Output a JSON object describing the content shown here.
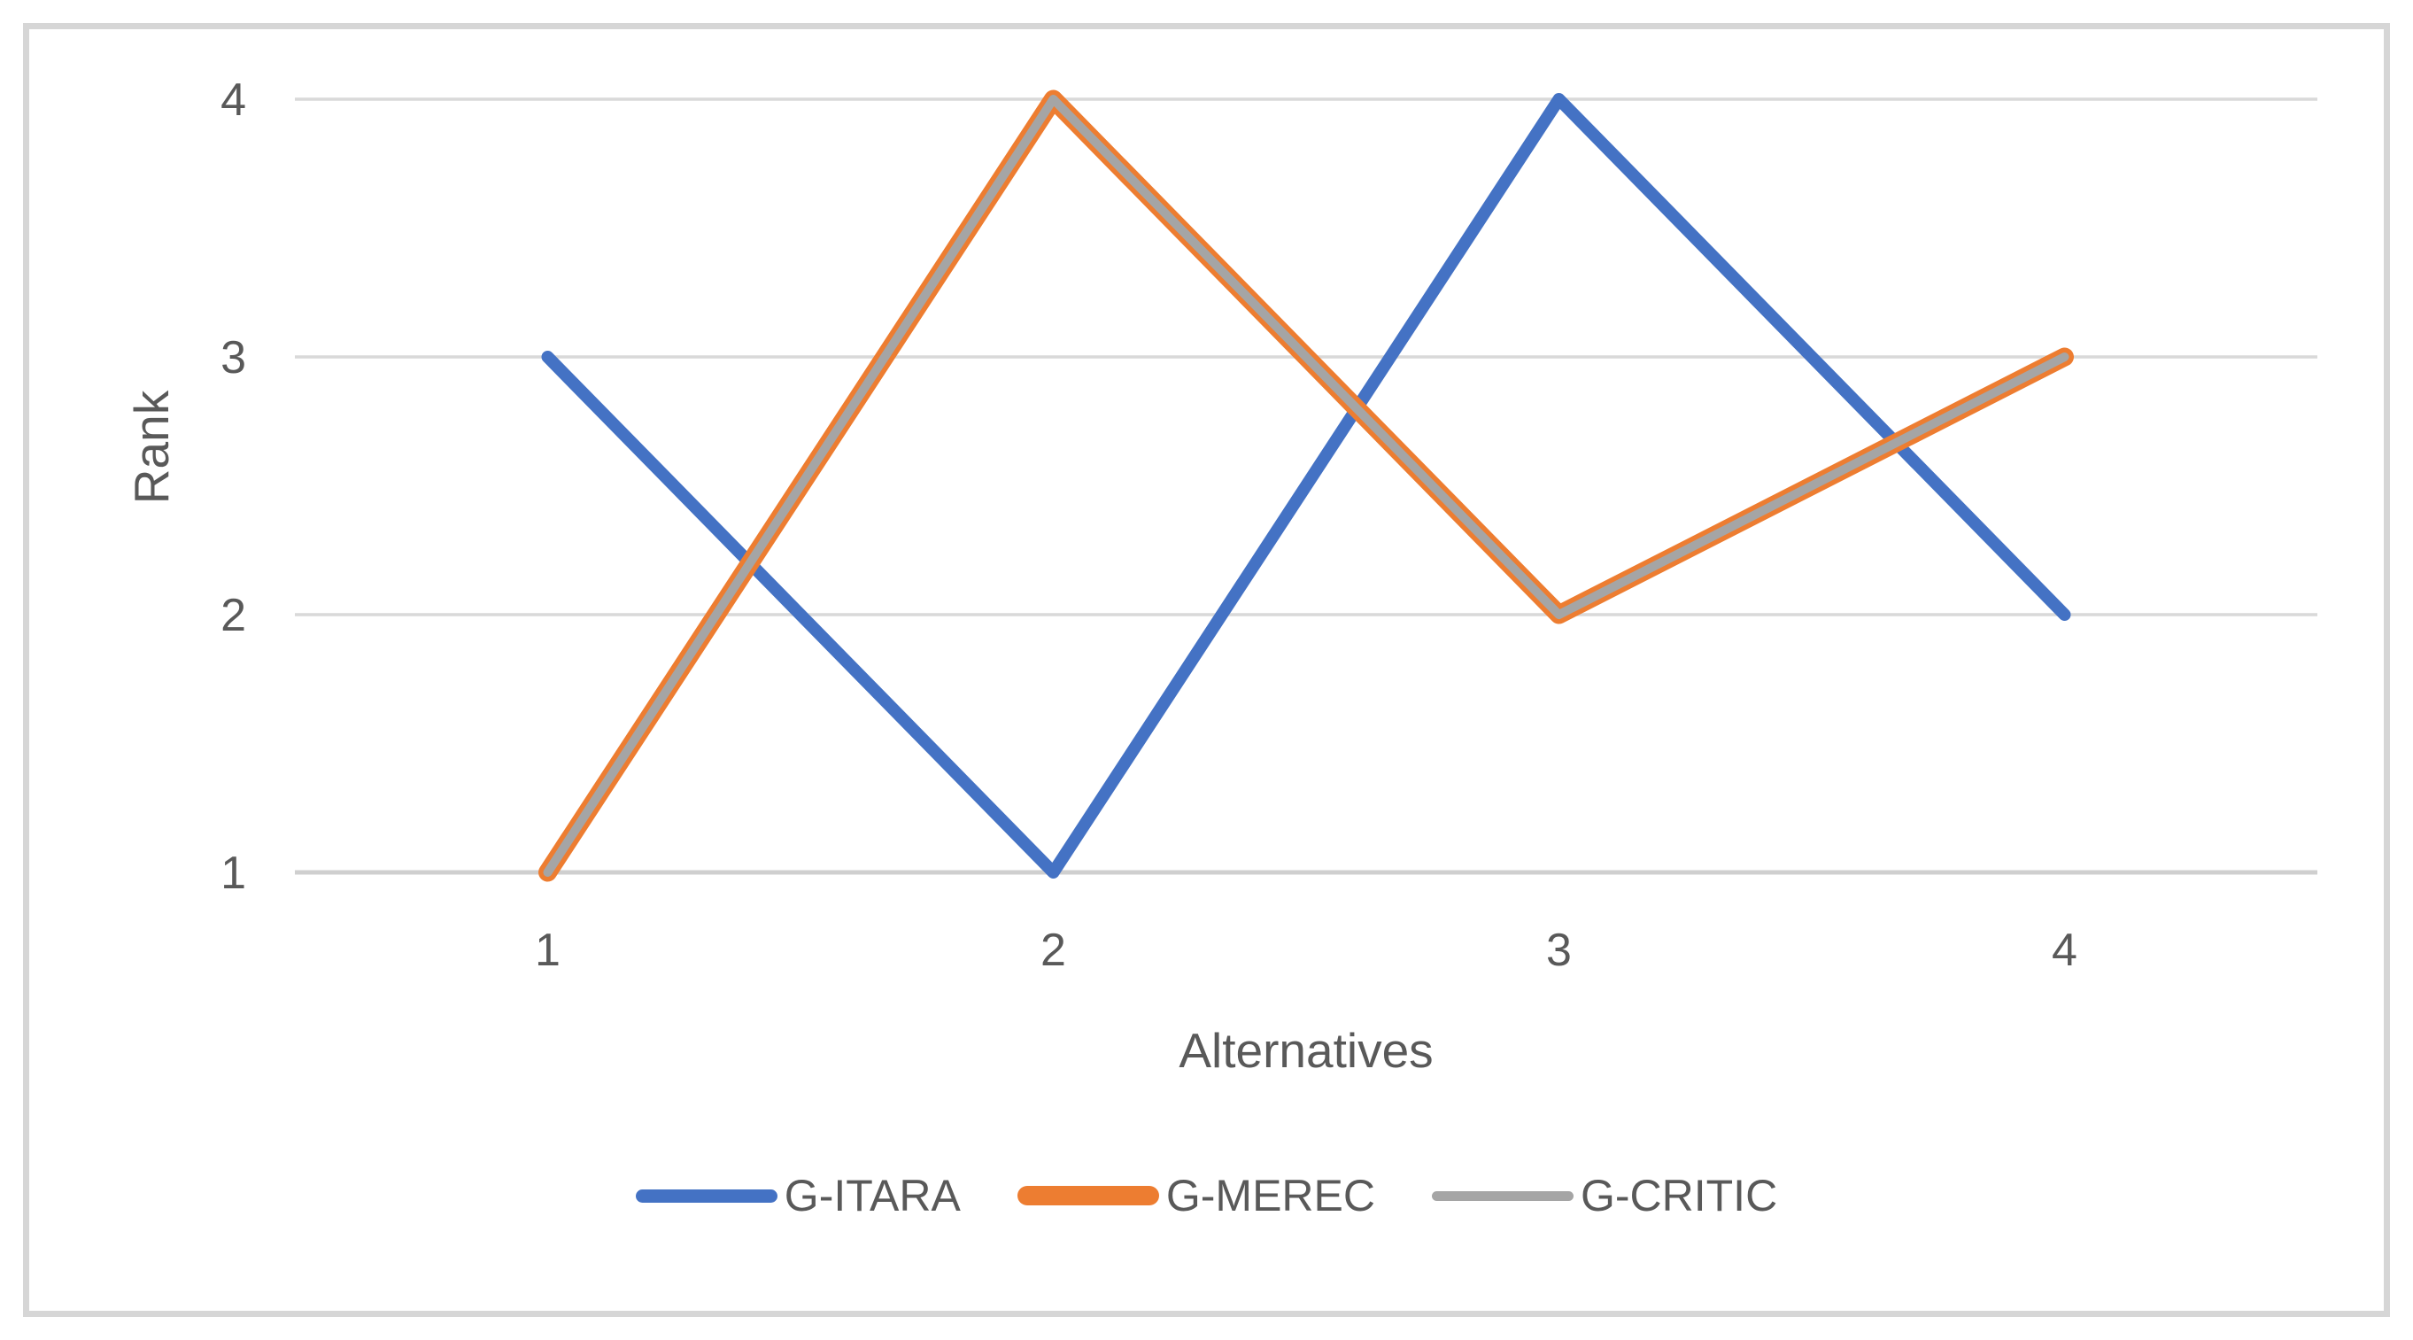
{
  "chart_data": {
    "type": "line",
    "title": "",
    "categories": [
      "1",
      "2",
      "3",
      "4"
    ],
    "series": [
      {
        "name": "G-ITARA",
        "values": [
          3,
          1,
          4,
          2
        ],
        "color": "#4472C4",
        "line_width": 14
      },
      {
        "name": "G-MEREC",
        "values": [
          1,
          4,
          2,
          3
        ],
        "color": "#ED7D31",
        "line_width": 21
      },
      {
        "name": "G-CRITIC",
        "values": [
          1,
          4,
          2,
          3
        ],
        "color": "#A5A5A5",
        "line_width": 10
      }
    ],
    "xlabel": "Alternatives",
    "ylabel": "Rank",
    "ylim": [
      1,
      4
    ],
    "yticks": [
      1,
      2,
      3,
      4
    ],
    "grid": "horizontal",
    "legend_position": "bottom"
  },
  "style": {
    "background": "#FFFFFF",
    "frame_border_color": "#D6D6D6",
    "gridline_color": "#D9D9D9",
    "axis_line_color": "#CFCFCF",
    "text_color": "#595959"
  }
}
